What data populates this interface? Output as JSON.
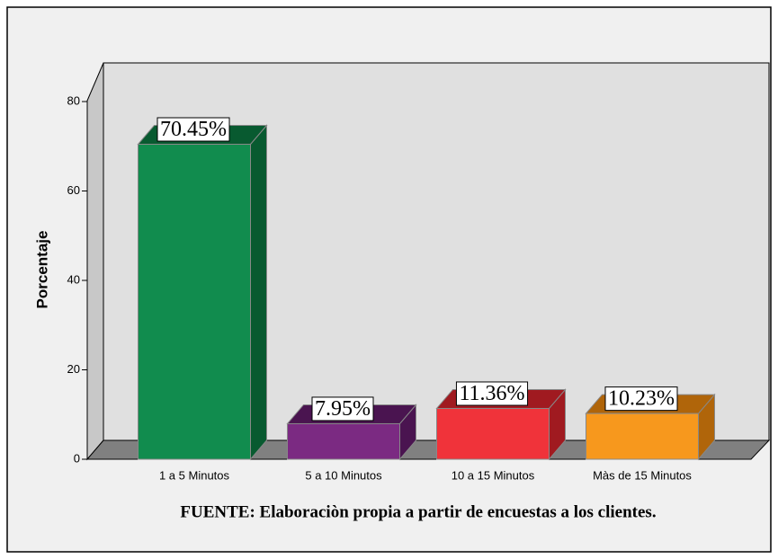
{
  "chart_data": {
    "type": "bar3d",
    "categories": [
      "1 a 5 Minutos",
      "5 a 10 Minutos",
      "10 a 15 Minutos",
      "Màs de 15 Minutos"
    ],
    "values": [
      70.45,
      7.95,
      11.36,
      10.23
    ],
    "value_labels": [
      "70.45%",
      "7.95%",
      "11.36%",
      "10.23%"
    ],
    "colors": [
      "#118c4e",
      "#7b2a82",
      "#f0333a",
      "#f7981d"
    ],
    "side_colors": [
      "#085a30",
      "#4a1450",
      "#a01a20",
      "#b0650a"
    ],
    "ylabel": "Porcentaje",
    "ylim": [
      0,
      80
    ],
    "yticks": [
      0,
      20,
      40,
      60,
      80
    ],
    "footnote": "FUENTE: Elaboraciòn  propia a partir de encuestas a los clientes."
  }
}
